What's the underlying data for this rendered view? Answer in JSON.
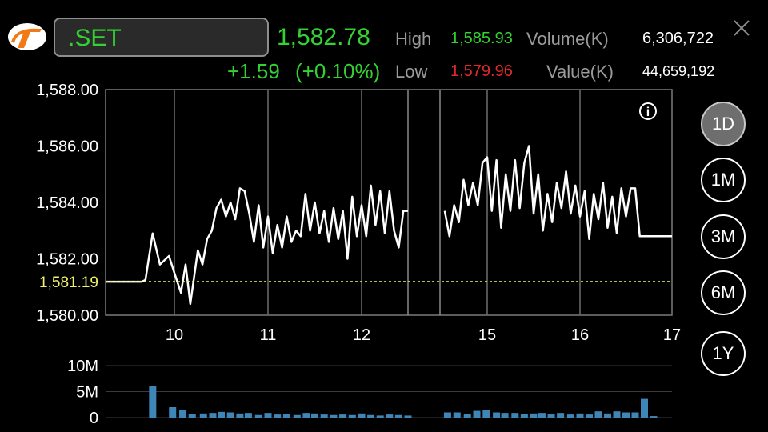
{
  "header": {
    "symbol": ".SET",
    "last": "1,582.78",
    "change": "+1.59",
    "change_pct": "(+0.10%)",
    "high_label": "High",
    "high_value": "1,585.93",
    "low_label": "Low",
    "low_value": "1,579.96",
    "volume_label": "Volume(K)",
    "volume_value": "6,306,722",
    "value_label": "Value(K)",
    "value_value": "44,659,192"
  },
  "periods": [
    {
      "label": "1D",
      "active": true
    },
    {
      "label": "1M",
      "active": false
    },
    {
      "label": "3M",
      "active": false
    },
    {
      "label": "6M",
      "active": false
    },
    {
      "label": "1Y",
      "active": false
    }
  ],
  "colors": {
    "up": "#33d133",
    "down": "#e02a2a",
    "reference": "#f2f26b",
    "volume": "#3f86b8"
  },
  "chart_data": [
    {
      "type": "line",
      "title": "",
      "xlabel": "",
      "ylabel": "",
      "x_ticks": [
        "10",
        "11",
        "12",
        "15",
        "16",
        "17"
      ],
      "y_ticks": [
        "1,588.00",
        "1,586.00",
        "1,584.00",
        "1,582.00",
        "1,580.00"
      ],
      "ylim": [
        1580,
        1588
      ],
      "reference_value": 1581.19,
      "reference_label": "1,581.19",
      "series": [
        {
          "segment": "morning",
          "points": [
            [
              9.62,
              1581.19
            ],
            [
              9.68,
              1581.19
            ],
            [
              9.75,
              1581.19
            ],
            [
              9.82,
              1581.19
            ],
            [
              9.84,
              1581.25
            ],
            [
              9.88,
              1582.9
            ],
            [
              9.92,
              1581.8
            ],
            [
              9.97,
              1582.1
            ],
            [
              10.02,
              1581.3
            ],
            [
              10.07,
              1580.8
            ],
            [
              10.12,
              1581.8
            ],
            [
              10.17,
              1580.4
            ],
            [
              10.25,
              1582.3
            ],
            [
              10.3,
              1581.8
            ],
            [
              10.35,
              1582.7
            ],
            [
              10.4,
              1583.0
            ],
            [
              10.45,
              1583.8
            ],
            [
              10.5,
              1584.1
            ],
            [
              10.55,
              1583.5
            ],
            [
              10.6,
              1584.0
            ],
            [
              10.65,
              1583.4
            ],
            [
              10.7,
              1584.5
            ],
            [
              10.75,
              1584.4
            ],
            [
              10.8,
              1583.6
            ],
            [
              10.85,
              1582.6
            ],
            [
              10.9,
              1583.9
            ],
            [
              10.95,
              1582.4
            ],
            [
              11.0,
              1583.5
            ],
            [
              11.05,
              1582.2
            ],
            [
              11.1,
              1583.2
            ],
            [
              11.15,
              1582.4
            ],
            [
              11.2,
              1583.5
            ],
            [
              11.25,
              1582.6
            ],
            [
              11.3,
              1583.0
            ],
            [
              11.35,
              1582.8
            ],
            [
              11.4,
              1584.3
            ],
            [
              11.45,
              1583.0
            ],
            [
              11.5,
              1584.0
            ],
            [
              11.55,
              1582.9
            ],
            [
              11.6,
              1583.7
            ],
            [
              11.65,
              1582.6
            ],
            [
              11.7,
              1583.8
            ],
            [
              11.75,
              1582.7
            ],
            [
              11.8,
              1583.7
            ],
            [
              11.85,
              1582.0
            ],
            [
              11.9,
              1584.2
            ],
            [
              11.95,
              1582.8
            ],
            [
              12.0,
              1583.9
            ],
            [
              12.05,
              1582.8
            ],
            [
              12.1,
              1584.6
            ],
            [
              12.15,
              1583.2
            ],
            [
              12.2,
              1584.4
            ],
            [
              12.25,
              1582.9
            ],
            [
              12.3,
              1584.4
            ],
            [
              12.35,
              1583.0
            ],
            [
              12.4,
              1582.4
            ],
            [
              12.45,
              1583.7
            ],
            [
              12.5,
              1583.7
            ]
          ]
        },
        {
          "segment": "afternoon",
          "points": [
            [
              14.55,
              1583.7
            ],
            [
              14.6,
              1582.8
            ],
            [
              14.65,
              1583.9
            ],
            [
              14.7,
              1583.3
            ],
            [
              14.75,
              1584.8
            ],
            [
              14.8,
              1583.9
            ],
            [
              14.85,
              1584.7
            ],
            [
              14.9,
              1583.9
            ],
            [
              14.95,
              1585.4
            ],
            [
              15.0,
              1585.6
            ],
            [
              15.05,
              1583.7
            ],
            [
              15.1,
              1585.5
            ],
            [
              15.15,
              1583.1
            ],
            [
              15.2,
              1585.0
            ],
            [
              15.25,
              1583.7
            ],
            [
              15.3,
              1585.5
            ],
            [
              15.35,
              1583.8
            ],
            [
              15.4,
              1585.4
            ],
            [
              15.45,
              1586.0
            ],
            [
              15.5,
              1583.6
            ],
            [
              15.55,
              1585.0
            ],
            [
              15.6,
              1583.0
            ],
            [
              15.65,
              1584.3
            ],
            [
              15.7,
              1583.3
            ],
            [
              15.75,
              1584.7
            ],
            [
              15.8,
              1583.8
            ],
            [
              15.85,
              1585.1
            ],
            [
              15.9,
              1583.6
            ],
            [
              15.95,
              1584.6
            ],
            [
              16.0,
              1583.5
            ],
            [
              16.05,
              1584.4
            ],
            [
              16.1,
              1582.7
            ],
            [
              16.15,
              1584.3
            ],
            [
              16.2,
              1583.4
            ],
            [
              16.25,
              1584.7
            ],
            [
              16.3,
              1583.1
            ],
            [
              16.35,
              1584.2
            ],
            [
              16.4,
              1582.9
            ],
            [
              16.45,
              1584.5
            ],
            [
              16.5,
              1583.5
            ],
            [
              16.55,
              1584.5
            ],
            [
              16.6,
              1584.5
            ],
            [
              16.65,
              1582.8
            ],
            [
              16.75,
              1582.8
            ],
            [
              16.85,
              1582.8
            ],
            [
              17.0,
              1582.8
            ]
          ]
        }
      ]
    },
    {
      "type": "bar",
      "title": "",
      "y_ticks": [
        "10M",
        "5M",
        "0"
      ],
      "ylim": [
        0,
        10000000
      ],
      "bars": [
        [
          9.88,
          6100000
        ],
        [
          9.99,
          2000000
        ],
        [
          10.09,
          1500000
        ],
        [
          10.19,
          700000
        ],
        [
          10.31,
          800000
        ],
        [
          10.41,
          900000
        ],
        [
          10.5,
          1100000
        ],
        [
          10.6,
          1000000
        ],
        [
          10.7,
          800000
        ],
        [
          10.79,
          900000
        ],
        [
          10.9,
          500000
        ],
        [
          11.0,
          900000
        ],
        [
          11.1,
          600000
        ],
        [
          11.2,
          700000
        ],
        [
          11.31,
          500000
        ],
        [
          11.41,
          900000
        ],
        [
          11.5,
          800000
        ],
        [
          11.6,
          600000
        ],
        [
          11.7,
          500000
        ],
        [
          11.8,
          600000
        ],
        [
          11.9,
          500000
        ],
        [
          12.0,
          800000
        ],
        [
          12.1,
          500000
        ],
        [
          12.2,
          400000
        ],
        [
          12.3,
          600000
        ],
        [
          12.4,
          500000
        ],
        [
          12.5,
          400000
        ],
        [
          14.58,
          1000000
        ],
        [
          14.68,
          1000000
        ],
        [
          14.79,
          700000
        ],
        [
          14.89,
          1300000
        ],
        [
          14.99,
          1400000
        ],
        [
          15.1,
          1000000
        ],
        [
          15.19,
          900000
        ],
        [
          15.3,
          900000
        ],
        [
          15.4,
          700000
        ],
        [
          15.5,
          800000
        ],
        [
          15.59,
          900000
        ],
        [
          15.69,
          700000
        ],
        [
          15.79,
          900000
        ],
        [
          15.9,
          600000
        ],
        [
          16.0,
          800000
        ],
        [
          16.1,
          600000
        ],
        [
          16.2,
          1200000
        ],
        [
          16.3,
          800000
        ],
        [
          16.4,
          1200000
        ],
        [
          16.5,
          1000000
        ],
        [
          16.6,
          1000000
        ],
        [
          16.7,
          3600000
        ],
        [
          16.8,
          300000
        ]
      ]
    }
  ]
}
